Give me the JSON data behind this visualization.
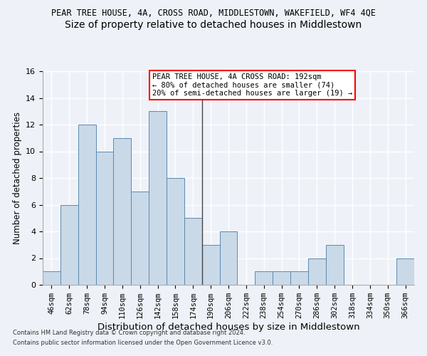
{
  "title": "PEAR TREE HOUSE, 4A, CROSS ROAD, MIDDLESTOWN, WAKEFIELD, WF4 4QE",
  "subtitle": "Size of property relative to detached houses in Middlestown",
  "xlabel": "Distribution of detached houses by size in Middlestown",
  "ylabel": "Number of detached properties",
  "categories": [
    "46sqm",
    "62sqm",
    "78sqm",
    "94sqm",
    "110sqm",
    "126sqm",
    "142sqm",
    "158sqm",
    "174sqm",
    "190sqm",
    "206sqm",
    "222sqm",
    "238sqm",
    "254sqm",
    "270sqm",
    "286sqm",
    "302sqm",
    "318sqm",
    "334sqm",
    "350sqm",
    "366sqm"
  ],
  "values": [
    1,
    6,
    12,
    10,
    11,
    7,
    13,
    8,
    5,
    3,
    4,
    0,
    1,
    1,
    1,
    2,
    3,
    0,
    0,
    0,
    2
  ],
  "bar_color": "#c9d9e8",
  "bar_edge_color": "#5a8ab0",
  "vline_index": 8.5,
  "vline_color": "#444444",
  "ylim": [
    0,
    16
  ],
  "yticks": [
    0,
    2,
    4,
    6,
    8,
    10,
    12,
    14,
    16
  ],
  "annotation_title": "PEAR TREE HOUSE, 4A CROSS ROAD: 192sqm",
  "annotation_line2": "← 80% of detached houses are smaller (74)",
  "annotation_line3": "20% of semi-detached houses are larger (19) →",
  "footnote1": "Contains HM Land Registry data © Crown copyright and database right 2024.",
  "footnote2": "Contains public sector information licensed under the Open Government Licence v3.0.",
  "background_color": "#eef2f8",
  "grid_color": "#ffffff",
  "title_fontsize": 8.5,
  "subtitle_fontsize": 10,
  "ylabel_fontsize": 8.5,
  "xlabel_fontsize": 9.5,
  "tick_fontsize": 7.5,
  "annotation_fontsize": 7.5,
  "footnote_fontsize": 6.0
}
